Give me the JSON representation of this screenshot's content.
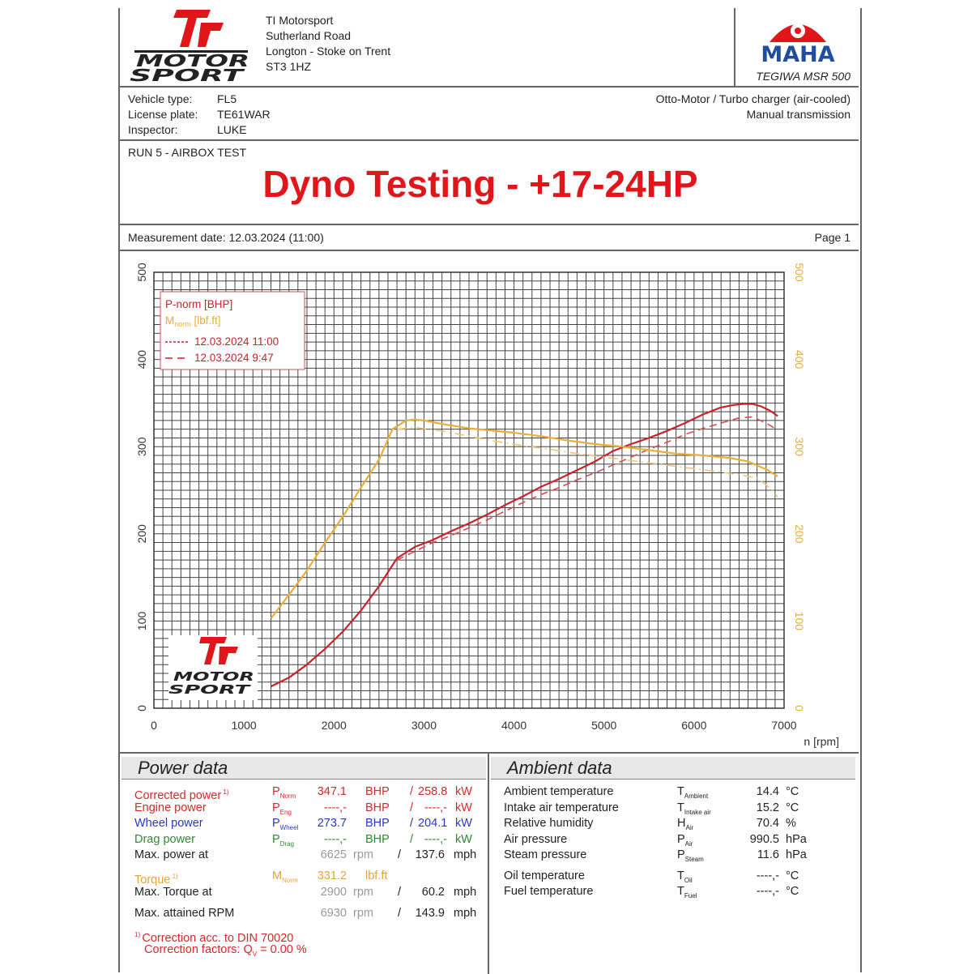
{
  "header": {
    "address": [
      "TI Motorsport",
      "Sutherland Road",
      "Longton - Stoke on Trent",
      "ST3 1HZ"
    ],
    "logo_text": [
      "MOTOR",
      "SPORT"
    ],
    "logo_mark": "Ti",
    "maha_logo": "MAHA",
    "dyno_model": "TEGIWA MSR 500"
  },
  "vehicle": {
    "labels": [
      "Vehicle type:",
      "License plate:",
      "Inspector:"
    ],
    "values": [
      "FL5",
      "TE61WAR",
      "LUKE"
    ],
    "engine": "Otto-Motor / Turbo charger (air-cooled)",
    "transmission": "Manual transmission"
  },
  "run": {
    "label": "RUN 5 - AIRBOX TEST",
    "headline": "Dyno Testing - +17-24HP"
  },
  "measurement": {
    "date_label": "Measurement date: 12.03.2024 (11:00)",
    "page": "Page 1"
  },
  "colors": {
    "power": "#c8232b",
    "torque": "#e8ae35",
    "headline": "#e0161b"
  },
  "chart_data": {
    "type": "line",
    "xlabel": "n [rpm]",
    "xlim": [
      0,
      7000
    ],
    "ylim": [
      0,
      500
    ],
    "y2lim": [
      0,
      500
    ],
    "x_ticks": [
      0,
      1000,
      2000,
      3000,
      4000,
      5000,
      6000,
      7000
    ],
    "y_ticks": [
      0,
      100,
      200,
      300,
      400,
      500
    ],
    "y2_ticks": [
      0,
      100,
      200,
      300,
      400,
      500
    ],
    "grid": true,
    "legend": {
      "items": [
        "P-norm [BHP]",
        "M",
        "12.03.2024 11:00",
        "12.03.2024 9:47"
      ],
      "torque_sub": "Mnorm",
      "torque_unit": "[lbf.ft]",
      "placement": "top-left"
    },
    "series": [
      {
        "name": "12.03.2024 11:00",
        "quantity": "P-norm [BHP]",
        "color": "#c8232b",
        "dash": "solid",
        "x": [
          1300,
          1500,
          1700,
          1900,
          2100,
          2300,
          2500,
          2700,
          2900,
          3100,
          3300,
          3500,
          3700,
          3900,
          4100,
          4300,
          4500,
          4700,
          4900,
          5100,
          5300,
          5500,
          5700,
          5900,
          6100,
          6300,
          6450,
          6550,
          6650,
          6750,
          6850,
          6930
        ],
        "y": [
          25,
          35,
          50,
          68,
          88,
          112,
          140,
          172,
          185,
          193,
          203,
          212,
          222,
          233,
          243,
          254,
          263,
          273,
          283,
          295,
          303,
          310,
          318,
          327,
          337,
          345,
          348,
          349,
          349,
          346,
          341,
          335
        ]
      },
      {
        "name": "12.03.2024 9:47",
        "quantity": "P-norm [BHP]",
        "color": "#d8494f",
        "dash": "dashed",
        "x": [
          2700,
          2900,
          3100,
          3300,
          3500,
          3700,
          3900,
          4100,
          4300,
          4500,
          4700,
          4900,
          5100,
          5300,
          5500,
          5700,
          5900,
          6100,
          6300,
          6500,
          6650,
          6800,
          6930
        ],
        "y": [
          170,
          180,
          190,
          198,
          207,
          216,
          226,
          236,
          245,
          253,
          262,
          270,
          279,
          288,
          297,
          305,
          314,
          321,
          327,
          333,
          334,
          327,
          319
        ]
      },
      {
        "name": "12.03.2024 11:00",
        "quantity": "M norm [lbf.ft]",
        "color": "#e8ae35",
        "dash": "solid",
        "x": [
          1300,
          1500,
          1700,
          1900,
          2100,
          2300,
          2500,
          2650,
          2800,
          2900,
          3000,
          3200,
          3500,
          3800,
          4000,
          4300,
          4600,
          4900,
          5200,
          5500,
          5800,
          6100,
          6400,
          6600,
          6800,
          6930
        ],
        "y": [
          103,
          130,
          158,
          190,
          220,
          253,
          285,
          320,
          330,
          331,
          330,
          326,
          321,
          318,
          316,
          312,
          307,
          303,
          300,
          296,
          292,
          290,
          287,
          283,
          274,
          266
        ]
      },
      {
        "name": "12.03.2024 9:47",
        "quantity": "M norm [lbf.ft]",
        "color": "#ecc676",
        "dash": "dashdot",
        "x": [
          2700,
          2900,
          3200,
          3500,
          3800,
          4100,
          4400,
          4700,
          5000,
          5300,
          5600,
          5900,
          6200,
          6500,
          6700,
          6850,
          6930
        ],
        "y": [
          320,
          322,
          318,
          312,
          306,
          301,
          297,
          292,
          288,
          284,
          280,
          276,
          272,
          268,
          264,
          252,
          242
        ]
      }
    ]
  },
  "power_data": {
    "title": "Power data",
    "rows": [
      {
        "label": "Corrected power",
        "note": "1)",
        "sym": "P",
        "sub": "Norm",
        "v1": "347.1",
        "u1": "BHP",
        "sep": "/",
        "v2": "258.8",
        "u2": "kW",
        "cls": "red"
      },
      {
        "label": "Engine power",
        "note": "",
        "sym": "P",
        "sub": "Eng",
        "v1": "----,-",
        "u1": "BHP",
        "sep": "/",
        "v2": "----,-",
        "u2": "kW",
        "cls": "red"
      },
      {
        "label": "Wheel power",
        "note": "",
        "sym": "P",
        "sub": "Wheel",
        "v1": "273.7",
        "u1": "BHP",
        "sep": "/",
        "v2": "204.1",
        "u2": "kW",
        "cls": "blue"
      },
      {
        "label": "Drag power",
        "note": "",
        "sym": "P",
        "sub": "Drag",
        "v1": "----,-",
        "u1": "BHP",
        "sep": "/",
        "v2": "----,-",
        "u2": "kW",
        "cls": "green"
      }
    ],
    "max_power": {
      "label": "Max. power at",
      "rpm": "6625",
      "rpm_u": "rpm",
      "sep": "/",
      "speed": "137.6",
      "speed_u": "mph"
    },
    "torque": {
      "label": "Torque",
      "note": "1)",
      "sym": "M",
      "sub": "Norm",
      "value": "331.2",
      "unit": "lbf.ft"
    },
    "max_torque": {
      "label": "Max. Torque at",
      "rpm": "2900",
      "rpm_u": "rpm",
      "sep": "/",
      "speed": "60.2",
      "speed_u": "mph"
    },
    "max_rpm": {
      "label": "Max. attained RPM",
      "rpm": "6930",
      "rpm_u": "rpm",
      "sep": "/",
      "speed": "143.9",
      "speed_u": "mph"
    },
    "correction": "Correction acc. to DIN 70020",
    "correction_note": "1)",
    "factors": "Correction factors: Q",
    "factors_sub": "V",
    "factors_value": "=   0.00 %"
  },
  "ambient_data": {
    "title": "Ambient data",
    "rows": [
      {
        "label": "Ambient temperature",
        "sym": "T",
        "sub": "Ambient",
        "value": "14.4",
        "unit": "°C"
      },
      {
        "label": "Intake air temperature",
        "sym": "T",
        "sub": "Intake air",
        "value": "15.2",
        "unit": "°C"
      },
      {
        "label": "Relative humidity",
        "sym": "H",
        "sub": "Air",
        "value": "70.4",
        "unit": "%"
      },
      {
        "label": "Air pressure",
        "sym": "P",
        "sub": "Air",
        "value": "990.5",
        "unit": "hPa"
      },
      {
        "label": "Steam pressure",
        "sym": "P",
        "sub": "Steam",
        "value": "11.6",
        "unit": "hPa"
      },
      {
        "label": "Oil temperature",
        "sym": "T",
        "sub": "Oil",
        "value": "----,-",
        "unit": "°C"
      },
      {
        "label": "Fuel temperature",
        "sym": "T",
        "sub": "Fuel",
        "value": "----,-",
        "unit": "°C"
      }
    ]
  }
}
